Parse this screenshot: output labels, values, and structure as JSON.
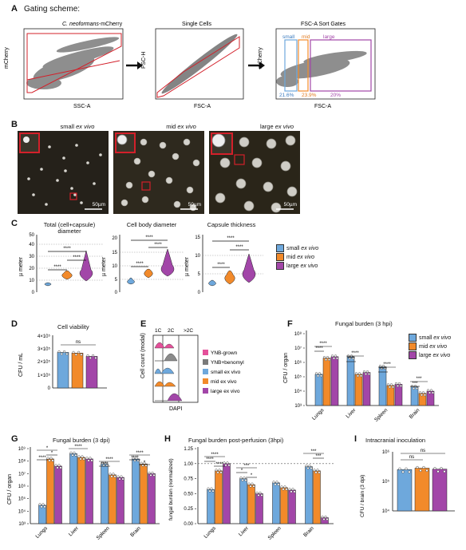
{
  "colors": {
    "small": "#6ea8dc",
    "mid": "#f28a2a",
    "large": "#a246a8",
    "red": "#d3202a",
    "yn_grown": "#e4509a",
    "yn_benomyl": "#7a7a7a"
  },
  "panelA": {
    "label": "A",
    "heading": "Gating scheme:",
    "plots": [
      {
        "title_italic": "C. neoformans",
        "title_rest": "-mCherry",
        "xlabel": "SSC-A",
        "ylabel": "mCherry",
        "xticks": [
          "0",
          "50K",
          "100K",
          "150K",
          "200K",
          "250K"
        ],
        "yticks": [
          "-10³",
          "0",
          "10³",
          "10⁴",
          "10⁵"
        ]
      },
      {
        "title": "Single Cells",
        "xlabel": "FSC-A",
        "ylabel": "FSC-H",
        "xticks": [
          "0",
          "50K",
          "100K",
          "150K",
          "200K",
          "250K"
        ],
        "yticks": [
          "0",
          "50K",
          "100K",
          "150K",
          "200K",
          "250K"
        ]
      },
      {
        "title": "FSC-A Sort Gates",
        "xlabel": "FSC-A",
        "ylabel": "mCherry",
        "xticks": [
          "0",
          "50K",
          "100K",
          "150K",
          "200K",
          "250K"
        ],
        "yticks": [
          "-10³",
          "0",
          "10³",
          "10⁴",
          "10⁵"
        ],
        "gates": [
          {
            "name": "small",
            "pct": "21.6%"
          },
          {
            "name": "mid",
            "pct": "23.9%"
          },
          {
            "name": "large",
            "pct": "20%"
          }
        ]
      }
    ]
  },
  "panelB": {
    "label": "B",
    "images": [
      {
        "title": "small",
        "title_italic": "ex vivo",
        "scale": "50µm"
      },
      {
        "title": "mid",
        "title_italic": "ex vivo",
        "scale": "50µm"
      },
      {
        "title": "large",
        "title_italic": "ex vivo",
        "scale": "50µm"
      }
    ]
  },
  "panelC": {
    "label": "C",
    "plots": [
      {
        "title": "Total (cell+capsule)",
        "title2": "diameter",
        "ylabel": "µ meter",
        "yticks": [
          "0",
          "10",
          "20",
          "30",
          "40",
          "50"
        ],
        "sig": [
          "****",
          "****",
          "****"
        ]
      },
      {
        "title": "Cell body diameter",
        "ylabel": "µ meter",
        "yticks": [
          "0",
          "5",
          "10",
          "15",
          "20"
        ],
        "sig": [
          "****",
          "****",
          "****"
        ]
      },
      {
        "title": "Capsule thickness",
        "ylabel": "µ meter",
        "yticks": [
          "0",
          "5",
          "10",
          "15"
        ],
        "sig": [
          "****",
          "****",
          "****"
        ]
      }
    ],
    "legend": [
      {
        "name": "small",
        "italic": "ex vivo"
      },
      {
        "name": "mid",
        "italic": "ex vivo"
      },
      {
        "name": "large",
        "italic": "ex vivo"
      }
    ]
  },
  "panelD": {
    "label": "D",
    "title": "Cell viability",
    "ylabel": "CFU / mL",
    "yticks": [
      "0",
      "1×10⁵",
      "2×10⁵",
      "3×10⁵",
      "4×10⁵"
    ],
    "sig": "ns"
  },
  "panelE": {
    "label": "E",
    "ylabel": "Cell count (modal)",
    "xlabel": "DAPI",
    "peaks": [
      "1C",
      "2C",
      ">2C"
    ],
    "legend": [
      "YNB-grown",
      "YNB+benomyl",
      "small ex vivo",
      "mid ex vivo",
      "large ex vivo"
    ]
  },
  "panelF": {
    "label": "F",
    "title": "Fungal burden (3 hpi)",
    "ylabel": "CFU / organ",
    "yticks": [
      "10³",
      "10⁴",
      "10⁵",
      "10⁶",
      "10⁷",
      "10⁸"
    ],
    "categories": [
      "Lungs",
      "Liver",
      "Spleen",
      "Brain"
    ],
    "legend": [
      {
        "name": "small",
        "italic": "ex vivo"
      },
      {
        "name": "mid",
        "italic": "ex vivo"
      },
      {
        "name": "large",
        "italic": "ex vivo"
      }
    ],
    "sig": [
      "****",
      "****",
      "****",
      "****",
      "****",
      "****",
      "****",
      "****",
      "***",
      "***"
    ]
  },
  "panelG": {
    "label": "G",
    "title": "Fungal burden (3 dpi)",
    "ylabel": "CFU / organ",
    "yticks": [
      "10³",
      "10⁴",
      "10⁵",
      "10⁶",
      "10⁷",
      "10⁸",
      "10⁹"
    ],
    "categories": [
      "Lungs",
      "Liver",
      "Spleen",
      "Brain"
    ],
    "sig": [
      "*",
      "*",
      "****",
      "****",
      "****",
      "****",
      "****",
      "****",
      "****",
      "****",
      "****",
      "*"
    ]
  },
  "panelH": {
    "label": "H",
    "title": "Fungal burden post-perfusion (3hpi)",
    "ylabel": "fungal burden (normalized)",
    "yticks": [
      "0.00",
      "0.25",
      "0.50",
      "0.75",
      "1.00",
      "1.25"
    ],
    "categories": [
      "Lungs",
      "Liver",
      "Spleen",
      "Brain"
    ],
    "sig": [
      "****",
      "****",
      "****",
      "***",
      "*",
      "*",
      "***",
      "***"
    ]
  },
  "panelI": {
    "label": "I",
    "title": "Intracranial inoculation",
    "ylabel": "CFU / brain (3 dpi)",
    "yticks": [
      "10⁴",
      "10⁵",
      "10⁶"
    ],
    "sig": [
      "ns",
      "ns"
    ]
  },
  "chart_data": [
    {
      "type": "bar",
      "title": "Fungal burden (3 hpi)",
      "ylabel": "CFU / organ",
      "yscale": "log",
      "ylim": [
        1000,
        100000000
      ],
      "categories": [
        "Lungs",
        "Liver",
        "Spleen",
        "Brain"
      ],
      "series": [
        {
          "name": "small ex vivo",
          "values": [
            150000,
            2500000,
            500000,
            20000
          ]
        },
        {
          "name": "mid ex vivo",
          "values": [
            2000000,
            150000,
            25000,
            7000
          ]
        },
        {
          "name": "large ex vivo",
          "values": [
            2500000,
            200000,
            30000,
            10000
          ]
        }
      ]
    },
    {
      "type": "bar",
      "title": "Fungal burden (3 dpi)",
      "ylabel": "CFU / organ",
      "yscale": "log",
      "ylim": [
        1000,
        1000000000
      ],
      "categories": [
        "Lungs",
        "Liver",
        "Spleen",
        "Brain"
      ],
      "series": [
        {
          "name": "small ex vivo",
          "values": [
            30000,
            400000000,
            60000000,
            150000000
          ]
        },
        {
          "name": "mid ex vivo",
          "values": [
            150000000,
            200000000,
            8000000,
            60000000
          ]
        },
        {
          "name": "large ex vivo",
          "values": [
            40000000,
            150000000,
            5000000,
            10000000
          ]
        }
      ]
    },
    {
      "type": "bar",
      "title": "Fungal burden post-perfusion (3hpi)",
      "ylabel": "fungal burden (normalized)",
      "ylim": [
        0,
        1.25
      ],
      "categories": [
        "Lungs",
        "Liver",
        "Spleen",
        "Brain"
      ],
      "series": [
        {
          "name": "small ex vivo",
          "values": [
            0.57,
            0.75,
            0.68,
            0.95
          ]
        },
        {
          "name": "mid ex vivo",
          "values": [
            0.88,
            0.65,
            0.6,
            0.88
          ]
        },
        {
          "name": "large ex vivo",
          "values": [
            1.0,
            0.5,
            0.56,
            0.1
          ]
        }
      ]
    },
    {
      "type": "bar",
      "title": "Cell viability",
      "ylabel": "CFU / mL",
      "ylim": [
        0,
        400000
      ],
      "categories": [
        "small ex vivo",
        "mid ex vivo",
        "large ex vivo"
      ],
      "values": [
        270000,
        265000,
        240000
      ]
    },
    {
      "type": "bar",
      "title": "Intracranial inoculation",
      "ylabel": "CFU / brain (3 dpi)",
      "yscale": "log",
      "ylim": [
        10000,
        1000000
      ],
      "categories": [
        "small ex vivo",
        "mid ex vivo",
        "large ex vivo"
      ],
      "values": [
        250000,
        280000,
        260000
      ]
    }
  ]
}
